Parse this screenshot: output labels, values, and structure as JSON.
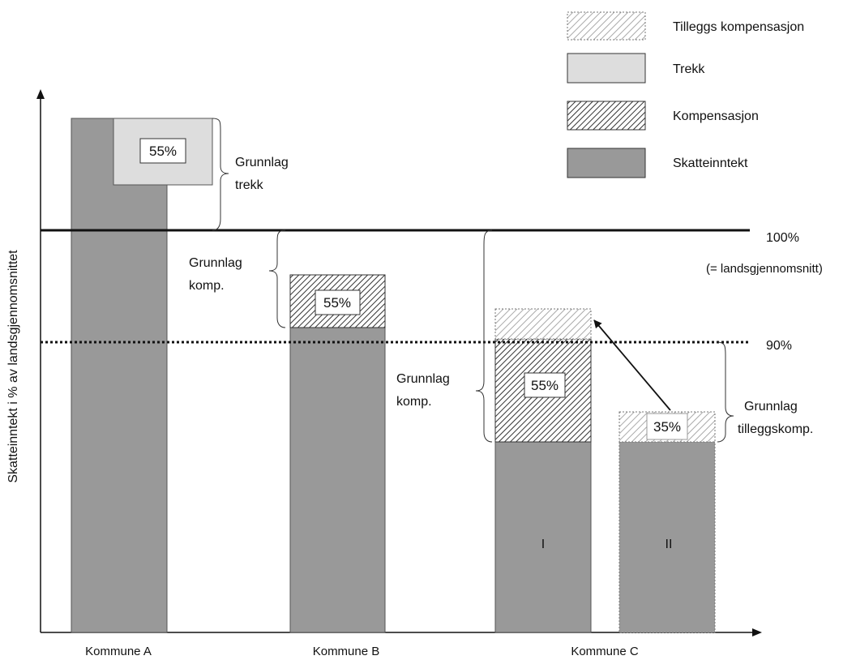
{
  "y_axis_label": "Skatteinntekt i % av  landsgjennomsnittet",
  "categories": [
    "Kommune A",
    "Kommune B",
    "Kommune C"
  ],
  "reference_lines": {
    "solid_label": "100%",
    "solid_sublabel": "(= landsgjennomsnitt)",
    "dotted_label": "90%"
  },
  "legend": [
    {
      "label": "Tilleggs kompensasjon",
      "pattern": "light-hatch"
    },
    {
      "label": "Trekk",
      "pattern": "light-grey"
    },
    {
      "label": "Kompensasjon",
      "pattern": "dense-hatch"
    },
    {
      "label": "Skatteinntekt",
      "pattern": "dark-grey"
    }
  ],
  "bars": {
    "a_percent": "55%",
    "b_percent": "55%",
    "c1_percent": "55%",
    "c2_percent": "35%",
    "c1_roman": "I",
    "c2_roman": "II"
  },
  "annotations": {
    "grunnlag_trekk_line1": "Grunnlag",
    "grunnlag_trekk_line2": "trekk",
    "grunnlag_komp_b_line1": "Grunnlag",
    "grunnlag_komp_b_line2": "komp.",
    "grunnlag_komp_c_line1": "Grunnlag",
    "grunnlag_komp_c_line2": "komp.",
    "grunnlag_tillegg_line1": "Grunnlag",
    "grunnlag_tillegg_line2": "tilleggskomp."
  },
  "colors": {
    "skatteinntekt": "#999999",
    "trekk": "#dddddd",
    "hatch_dense": "#333333",
    "hatch_light": "#aaaaaa",
    "line": "#111111"
  }
}
